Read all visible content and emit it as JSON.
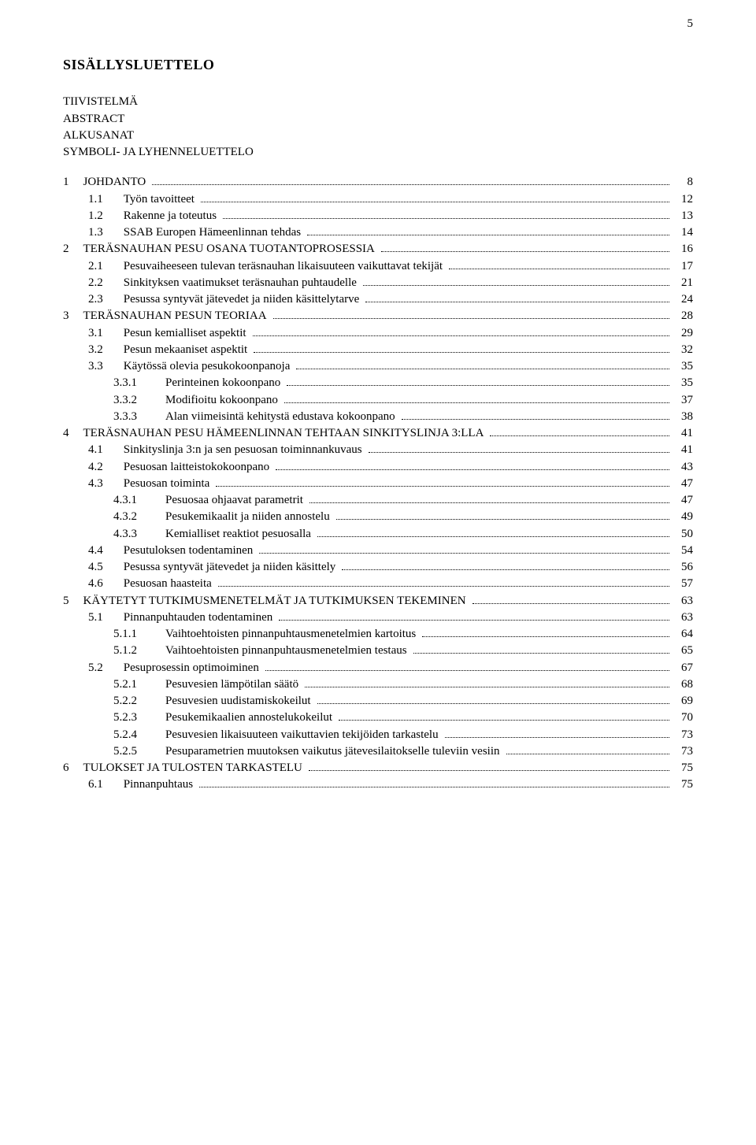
{
  "page_number": "5",
  "heading": "SISÄLLYSLUETTELO",
  "prelist": [
    "TIIVISTELMÄ",
    "ABSTRACT",
    "ALKUSANAT",
    "SYMBOLI- JA LYHENNELUETTELO"
  ],
  "entries": [
    {
      "num": "1",
      "title": "JOHDANTO",
      "page": "8",
      "indent": 0
    },
    {
      "num": "1.1",
      "title": "Työn tavoitteet",
      "page": "12",
      "indent": 1
    },
    {
      "num": "1.2",
      "title": "Rakenne ja toteutus",
      "page": "13",
      "indent": 1
    },
    {
      "num": "1.3",
      "title": "SSAB Europen Hämeenlinnan tehdas",
      "page": "14",
      "indent": 1
    },
    {
      "num": "2",
      "title": "TERÄSNAUHAN PESU OSANA TUOTANTOPROSESSIA",
      "page": "16",
      "indent": 0
    },
    {
      "num": "2.1",
      "title": "Pesuvaiheeseen tulevan teräsnauhan likaisuuteen vaikuttavat tekijät",
      "page": "17",
      "indent": 1
    },
    {
      "num": "2.2",
      "title": "Sinkityksen vaatimukset teräsnauhan puhtaudelle",
      "page": "21",
      "indent": 1
    },
    {
      "num": "2.3",
      "title": "Pesussa syntyvät jätevedet ja niiden käsittelytarve",
      "page": "24",
      "indent": 1
    },
    {
      "num": "3",
      "title": "TERÄSNAUHAN PESUN TEORIAA",
      "page": "28",
      "indent": 0
    },
    {
      "num": "3.1",
      "title": "Pesun kemialliset aspektit",
      "page": "29",
      "indent": 1
    },
    {
      "num": "3.2",
      "title": "Pesun mekaaniset aspektit",
      "page": "32",
      "indent": 1
    },
    {
      "num": "3.3",
      "title": "Käytössä olevia pesukokoonpanoja",
      "page": "35",
      "indent": 1
    },
    {
      "num": "3.3.1",
      "title": "Perinteinen kokoonpano",
      "page": "35",
      "indent": 2
    },
    {
      "num": "3.3.2",
      "title": "Modifioitu kokoonpano",
      "page": "37",
      "indent": 2
    },
    {
      "num": "3.3.3",
      "title": "Alan viimeisintä kehitystä edustava kokoonpano",
      "page": "38",
      "indent": 2
    },
    {
      "num": "4",
      "title": "TERÄSNAUHAN PESU HÄMEENLINNAN TEHTAAN SINKITYSLINJA 3:LLA",
      "page": "41",
      "indent": 0
    },
    {
      "num": "4.1",
      "title": "Sinkityslinja 3:n ja sen pesuosan toiminnankuvaus",
      "page": "41",
      "indent": 1
    },
    {
      "num": "4.2",
      "title": "Pesuosan laitteistokokoonpano",
      "page": "43",
      "indent": 1
    },
    {
      "num": "4.3",
      "title": "Pesuosan toiminta",
      "page": "47",
      "indent": 1
    },
    {
      "num": "4.3.1",
      "title": "Pesuosaa ohjaavat parametrit",
      "page": "47",
      "indent": 2
    },
    {
      "num": "4.3.2",
      "title": "Pesukemikaalit ja niiden annostelu",
      "page": "49",
      "indent": 2
    },
    {
      "num": "4.3.3",
      "title": "Kemialliset reaktiot pesuosalla",
      "page": "50",
      "indent": 2
    },
    {
      "num": "4.4",
      "title": "Pesutuloksen todentaminen",
      "page": "54",
      "indent": 1
    },
    {
      "num": "4.5",
      "title": "Pesussa syntyvät jätevedet ja niiden käsittely",
      "page": "56",
      "indent": 1
    },
    {
      "num": "4.6",
      "title": "Pesuosan haasteita",
      "page": "57",
      "indent": 1
    },
    {
      "num": "5",
      "title": "KÄYTETYT TUTKIMUSMENETELMÄT JA TUTKIMUKSEN TEKEMINEN",
      "page": "63",
      "indent": 0
    },
    {
      "num": "5.1",
      "title": "Pinnanpuhtauden todentaminen",
      "page": "63",
      "indent": 1
    },
    {
      "num": "5.1.1",
      "title": "Vaihtoehtoisten pinnanpuhtausmenetelmien kartoitus",
      "page": "64",
      "indent": 2
    },
    {
      "num": "5.1.2",
      "title": "Vaihtoehtoisten pinnanpuhtausmenetelmien testaus",
      "page": "65",
      "indent": 2
    },
    {
      "num": "5.2",
      "title": "Pesuprosessin optimoiminen",
      "page": "67",
      "indent": 1
    },
    {
      "num": "5.2.1",
      "title": "Pesuvesien lämpötilan säätö",
      "page": "68",
      "indent": 2
    },
    {
      "num": "5.2.2",
      "title": "Pesuvesien uudistamiskokeilut",
      "page": "69",
      "indent": 2
    },
    {
      "num": "5.2.3",
      "title": "Pesukemikaalien annostelukokeilut",
      "page": "70",
      "indent": 2
    },
    {
      "num": "5.2.4",
      "title": "Pesuvesien likaisuuteen vaikuttavien tekijöiden tarkastelu",
      "page": "73",
      "indent": 2
    },
    {
      "num": "5.2.5",
      "title": "Pesuparametrien muutoksen vaikutus jätevesilaitokselle tuleviin vesiin",
      "page": "73",
      "indent": 2
    },
    {
      "num": "6",
      "title": "TULOKSET JA TULOSTEN TARKASTELU",
      "page": "75",
      "indent": 0
    },
    {
      "num": "6.1",
      "title": "Pinnanpuhtaus",
      "page": "75",
      "indent": 1
    }
  ]
}
